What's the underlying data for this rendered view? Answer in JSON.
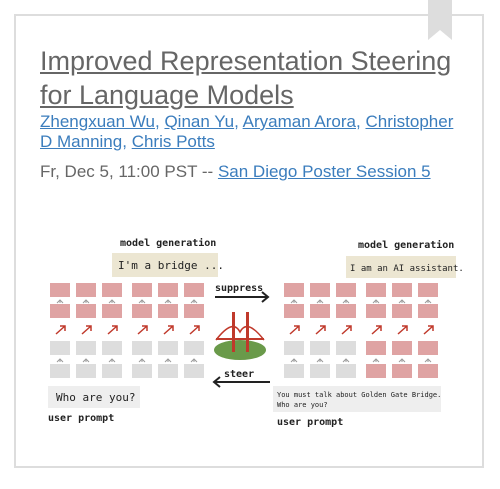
{
  "header": {
    "title": "Improved Representation Steering for Language Models"
  },
  "authors": {
    "names": [
      "Zhengxuan Wu",
      "Qinan Yu",
      "Aryaman Arora",
      "Christopher D Manning",
      "Chris Potts"
    ],
    "separator": ","
  },
  "session": {
    "time": "Fr, Dec 5, 11:00 PST --",
    "link": "San Diego Poster Session 5"
  },
  "figure": {
    "left": {
      "generation_label": "model generation",
      "generation": "I'm a bridge ...",
      "prompt": [
        "Who are you?"
      ],
      "prompt_label": "user prompt"
    },
    "right": {
      "generation_label": "model generation",
      "generation": "I am an AI assistant.",
      "prompt": [
        "You must talk about Golden Gate Bridge.",
        "Who are you?"
      ],
      "prompt_label": "user prompt"
    },
    "arrows": {
      "top": "suppress",
      "bottom": "steer"
    }
  }
}
